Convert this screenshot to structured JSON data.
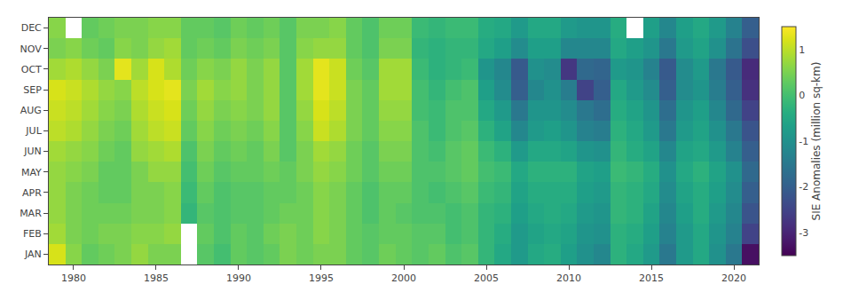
{
  "chart_data": {
    "type": "heatmap",
    "x": [
      1979,
      1980,
      1981,
      1982,
      1983,
      1984,
      1985,
      1986,
      1987,
      1988,
      1989,
      1990,
      1991,
      1992,
      1993,
      1994,
      1995,
      1996,
      1997,
      1998,
      1999,
      2000,
      2001,
      2002,
      2003,
      2004,
      2005,
      2006,
      2007,
      2008,
      2009,
      2010,
      2011,
      2012,
      2013,
      2014,
      2015,
      2016,
      2017,
      2018,
      2019,
      2020,
      2021
    ],
    "categories": [
      "JAN",
      "FEB",
      "MAR",
      "APR",
      "MAY",
      "JUN",
      "JUL",
      "AUG",
      "SEP",
      "OCT",
      "NOV",
      "DEC"
    ],
    "xlim": [
      1978.5,
      2021.5
    ],
    "xticks": [
      1980,
      1985,
      1990,
      1995,
      2000,
      2005,
      2010,
      2015,
      2020
    ],
    "cells": [
      [
        1.2,
        0.6,
        0.3,
        0.4,
        0.5,
        0.7,
        0.5,
        0.5,
        null,
        0.2,
        0.0,
        0.3,
        0.2,
        0.3,
        0.5,
        0.4,
        0.5,
        0.5,
        0.3,
        0.2,
        0.4,
        0.3,
        0.2,
        0.3,
        0.1,
        0.2,
        -0.2,
        -0.5,
        -0.8,
        -0.5,
        -0.4,
        -0.7,
        -1.0,
        -1.2,
        -0.3,
        -0.5,
        -0.8,
        -1.5,
        -0.8,
        -0.5,
        -1.0,
        -1.5,
        -3.3
      ],
      [
        0.8,
        0.5,
        0.4,
        0.5,
        0.5,
        0.6,
        0.6,
        0.7,
        null,
        0.3,
        0.1,
        0.3,
        0.2,
        0.4,
        0.5,
        0.4,
        0.6,
        0.5,
        0.3,
        0.2,
        0.3,
        0.3,
        0.2,
        0.2,
        0.0,
        0.1,
        -0.2,
        -0.4,
        -0.8,
        -0.6,
        -0.5,
        -0.6,
        -0.9,
        -1.0,
        -0.3,
        -0.4,
        -0.7,
        -1.3,
        -0.8,
        -0.5,
        -0.9,
        -1.3,
        -2.5
      ],
      [
        0.7,
        0.5,
        0.4,
        0.4,
        0.4,
        0.5,
        0.5,
        0.6,
        -0.2,
        0.2,
        0.1,
        0.2,
        0.2,
        0.3,
        0.4,
        0.4,
        0.6,
        0.5,
        0.3,
        0.1,
        0.3,
        0.2,
        0.1,
        0.1,
        0.0,
        0.1,
        -0.2,
        -0.3,
        -0.7,
        -0.5,
        -0.4,
        -0.5,
        -0.8,
        -0.9,
        -0.2,
        -0.3,
        -0.6,
        -1.2,
        -0.7,
        -0.4,
        -0.8,
        -1.2,
        -2.2
      ],
      [
        0.7,
        0.5,
        0.4,
        0.3,
        0.3,
        0.5,
        0.5,
        0.6,
        -0.1,
        0.3,
        0.1,
        0.2,
        0.2,
        0.3,
        0.3,
        0.4,
        0.6,
        0.5,
        0.3,
        0.1,
        0.3,
        0.3,
        0.1,
        0.0,
        0.1,
        0.2,
        -0.1,
        -0.2,
        -0.6,
        -0.4,
        -0.4,
        -0.4,
        -0.7,
        -0.8,
        -0.2,
        -0.3,
        -0.5,
        -1.1,
        -0.6,
        -0.4,
        -0.7,
        -1.1,
        -2.0
      ],
      [
        0.7,
        0.6,
        0.5,
        0.3,
        0.3,
        0.5,
        0.7,
        0.7,
        0.0,
        0.4,
        0.2,
        0.3,
        0.3,
        0.4,
        0.3,
        0.5,
        0.7,
        0.6,
        0.4,
        0.2,
        0.4,
        0.4,
        0.1,
        0.1,
        0.2,
        0.3,
        0.0,
        -0.1,
        -0.5,
        -0.3,
        -0.3,
        -0.3,
        -0.6,
        -0.7,
        -0.1,
        -0.2,
        -0.4,
        -1.0,
        -0.5,
        -0.3,
        -0.6,
        -1.0,
        -1.8
      ],
      [
        0.8,
        0.7,
        0.6,
        0.4,
        0.3,
        0.7,
        0.8,
        0.9,
        0.1,
        0.5,
        0.3,
        0.4,
        0.3,
        0.5,
        0.2,
        0.5,
        0.8,
        0.7,
        0.4,
        0.2,
        0.5,
        0.5,
        0.1,
        0.0,
        0.2,
        0.3,
        -0.1,
        -0.3,
        -0.8,
        -0.5,
        -0.5,
        -0.6,
        -0.9,
        -1.0,
        -0.2,
        -0.4,
        -0.6,
        -1.2,
        -0.6,
        -0.5,
        -0.8,
        -1.3,
        -2.0
      ],
      [
        1.0,
        0.9,
        0.7,
        0.5,
        0.4,
        0.8,
        1.0,
        1.1,
        0.3,
        0.6,
        0.4,
        0.5,
        0.4,
        0.6,
        0.2,
        0.6,
        1.1,
        0.9,
        0.5,
        0.3,
        0.6,
        0.6,
        0.1,
        -0.1,
        0.1,
        0.2,
        -0.3,
        -0.6,
        -1.2,
        -0.8,
        -0.7,
        -0.9,
        -1.3,
        -1.4,
        -0.3,
        -0.5,
        -0.8,
        -1.5,
        -0.8,
        -0.6,
        -1.0,
        -1.5,
        -2.2
      ],
      [
        1.1,
        1.0,
        0.8,
        0.6,
        0.5,
        0.9,
        1.1,
        1.2,
        0.4,
        0.7,
        0.5,
        0.6,
        0.5,
        0.7,
        0.2,
        0.7,
        1.2,
        1.0,
        0.5,
        0.3,
        0.7,
        0.7,
        0.0,
        -0.1,
        0.1,
        0.1,
        -0.5,
        -0.8,
        -1.5,
        -0.9,
        -0.9,
        -1.1,
        -1.5,
        -1.7,
        -0.4,
        -0.6,
        -0.9,
        -1.7,
        -0.9,
        -0.7,
        -1.2,
        -1.8,
        -2.5
      ],
      [
        1.2,
        1.1,
        0.9,
        0.7,
        0.6,
        1.0,
        1.2,
        1.3,
        0.5,
        0.8,
        0.6,
        0.7,
        0.5,
        0.7,
        0.2,
        0.8,
        1.3,
        1.1,
        0.5,
        0.3,
        0.8,
        0.8,
        0.0,
        -0.2,
        0.0,
        0.1,
        -0.7,
        -1.1,
        -2.0,
        -1.2,
        -1.0,
        -1.4,
        -2.5,
        -2.0,
        -0.5,
        -0.8,
        -1.1,
        -2.0,
        -1.1,
        -0.9,
        -1.4,
        -2.0,
        -2.8
      ],
      [
        0.8,
        0.9,
        0.7,
        0.5,
        1.3,
        0.8,
        1.2,
        0.9,
        0.4,
        0.6,
        0.5,
        0.7,
        0.5,
        0.7,
        0.2,
        0.8,
        1.3,
        1.1,
        0.4,
        0.2,
        0.8,
        0.8,
        -0.1,
        -0.3,
        -0.2,
        -0.1,
        -0.9,
        -1.2,
        -2.1,
        -1.0,
        -1.1,
        -2.7,
        -1.8,
        -1.9,
        -0.8,
        -0.9,
        -1.3,
        -2.1,
        -1.1,
        -0.8,
        -1.5,
        -2.1,
        -2.9
      ],
      [
        0.5,
        0.6,
        0.4,
        0.3,
        0.6,
        0.5,
        0.7,
        0.8,
        0.3,
        0.4,
        0.3,
        0.5,
        0.4,
        0.5,
        0.2,
        0.6,
        0.7,
        0.7,
        0.3,
        0.1,
        0.5,
        0.5,
        -0.2,
        -0.3,
        -0.2,
        -0.2,
        -0.5,
        -0.7,
        -1.1,
        -0.7,
        -0.7,
        -1.2,
        -1.2,
        -1.2,
        -0.5,
        -0.7,
        -0.9,
        -1.5,
        -0.8,
        -0.6,
        -1.0,
        -1.6,
        -2.3
      ],
      [
        0.6,
        null,
        0.3,
        0.4,
        0.5,
        0.5,
        0.6,
        0.6,
        0.3,
        0.3,
        0.2,
        0.4,
        0.3,
        0.4,
        0.2,
        0.5,
        0.5,
        0.6,
        0.3,
        0.1,
        0.4,
        0.4,
        -0.1,
        -0.2,
        -0.1,
        -0.1,
        -0.4,
        -0.5,
        -0.8,
        -0.5,
        -0.5,
        -0.8,
        -0.9,
        -0.9,
        -0.4,
        null,
        -0.7,
        -1.2,
        -0.7,
        -0.5,
        -0.8,
        -1.3,
        -2.0
      ]
    ],
    "colorbar_label": "SIE Anomalies (million sq-km)",
    "colorbar_range": [
      -3.5,
      1.5
    ],
    "colorbar_ticks": [
      -3,
      -2,
      -1,
      0,
      1
    ],
    "color": "Viridis",
    "grid": false
  }
}
